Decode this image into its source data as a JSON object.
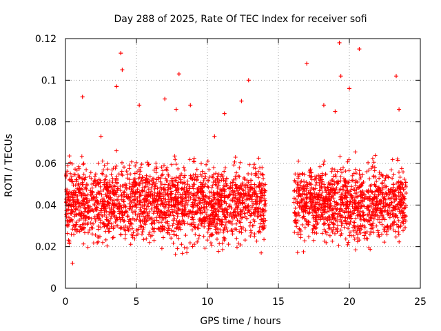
{
  "chart_data": {
    "type": "scatter",
    "title": "Day 288 of 2025, Rate Of TEC Index for receiver sofi",
    "xlabel": "GPS time / hours",
    "ylabel": "ROTI / TECUs",
    "xlim": [
      0,
      25
    ],
    "ylim": [
      0,
      0.12
    ],
    "xticks": [
      0,
      5,
      10,
      15,
      20,
      25
    ],
    "yticks": [
      0,
      0.02,
      0.04,
      0.06,
      0.08,
      0.1,
      0.12
    ],
    "xtick_labels": [
      "0",
      "5",
      "10",
      "15",
      "20",
      "25"
    ],
    "ytick_labels": [
      "0",
      "0.02",
      "0.04",
      "0.06",
      "0.08",
      "0.1",
      "0.12"
    ],
    "grid": true,
    "marker": "+",
    "color": "#ff0000",
    "data_gap_hours": [
      14.1,
      16.1
    ],
    "series": [
      {
        "name": "ROTI",
        "x": [
          0.1,
          0.2,
          0.3,
          0.5,
          0.6,
          0.8,
          1.0,
          1.2,
          1.3,
          1.5,
          1.7,
          2.0,
          2.2,
          2.5,
          2.7,
          3.0,
          3.3,
          3.6,
          3.8,
          3.9,
          4.0,
          4.2,
          4.5,
          4.8,
          5.0,
          5.2,
          5.5,
          5.8,
          6.0,
          6.2,
          6.4,
          6.7,
          7.0,
          7.2,
          7.4,
          7.6,
          7.8,
          8.0,
          8.2,
          8.4,
          8.6,
          8.8,
          9.0,
          9.3,
          9.6,
          9.9,
          10.2,
          10.5,
          10.8,
          11.0,
          11.2,
          11.5,
          11.8,
          12.1,
          12.4,
          12.6,
          12.9,
          13.2,
          13.5,
          13.8,
          13.9,
          16.2,
          16.5,
          16.8,
          17.0,
          17.3,
          17.6,
          17.9,
          18.2,
          18.5,
          18.8,
          19.0,
          19.2,
          19.3,
          19.4,
          19.6,
          19.8,
          20.0,
          20.2,
          20.5,
          20.7,
          20.8,
          21.0,
          21.3,
          21.6,
          21.9,
          22.2,
          22.5,
          22.8,
          23.1,
          23.3,
          23.5,
          23.7,
          23.9
        ],
        "y": [
          0.045,
          0.038,
          0.052,
          0.012,
          0.03,
          0.041,
          0.048,
          0.092,
          0.035,
          0.05,
          0.028,
          0.044,
          0.039,
          0.073,
          0.031,
          0.047,
          0.042,
          0.097,
          0.036,
          0.113,
          0.105,
          0.05,
          0.033,
          0.046,
          0.039,
          0.088,
          0.029,
          0.045,
          0.041,
          0.051,
          0.037,
          0.044,
          0.091,
          0.032,
          0.048,
          0.04,
          0.086,
          0.103,
          0.043,
          0.035,
          0.05,
          0.088,
          0.039,
          0.046,
          0.031,
          0.044,
          0.041,
          0.073,
          0.037,
          0.047,
          0.084,
          0.032,
          0.045,
          0.039,
          0.09,
          0.036,
          0.1,
          0.048,
          0.042,
          0.033,
          0.038,
          0.036,
          0.045,
          0.04,
          0.108,
          0.05,
          0.034,
          0.047,
          0.088,
          0.042,
          0.038,
          0.085,
          0.046,
          0.118,
          0.102,
          0.04,
          0.031,
          0.096,
          0.044,
          0.039,
          0.115,
          0.049,
          0.035,
          0.043,
          0.041,
          0.038,
          0.047,
          0.044,
          0.036,
          0.05,
          0.102,
          0.086,
          0.04,
          0.035
        ]
      }
    ]
  }
}
